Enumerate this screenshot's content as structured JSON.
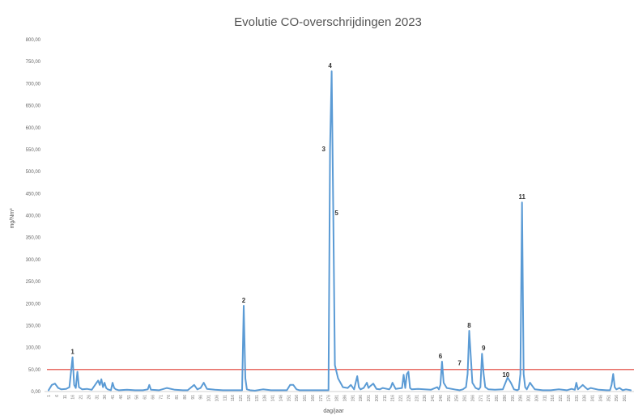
{
  "chart_data": {
    "type": "line",
    "title": "Evolutie CO-overschrijdingen 2023",
    "xlabel": "dag/jaar",
    "ylabel": "mg/Nm³",
    "ylim": [
      0,
      800
    ],
    "xlim": [
      1,
      365
    ],
    "yticks": [
      "0,00",
      "50,00",
      "100,00",
      "150,00",
      "200,00",
      "250,00",
      "300,00",
      "350,00",
      "400,00",
      "450,00",
      "500,00",
      "550,00",
      "600,00",
      "650,00",
      "700,00",
      "750,00",
      "800,00"
    ],
    "xticks": [
      1,
      6,
      11,
      16,
      21,
      26,
      31,
      36,
      41,
      46,
      51,
      56,
      61,
      66,
      71,
      76,
      81,
      86,
      91,
      96,
      101,
      106,
      111,
      116,
      121,
      126,
      131,
      136,
      141,
      146,
      151,
      156,
      161,
      166,
      171,
      176,
      181,
      186,
      191,
      196,
      201,
      206,
      211,
      216,
      221,
      226,
      231,
      236,
      241,
      246,
      251,
      256,
      261,
      266,
      271,
      276,
      281,
      286,
      291,
      296,
      301,
      306,
      311,
      316,
      321,
      326,
      331,
      336,
      341,
      346,
      351,
      356,
      361
    ],
    "colors": {
      "series": "#5b9bd5",
      "threshold": "#e03c31"
    },
    "threshold": {
      "value": 50
    },
    "series": [
      {
        "x": [
          1,
          3,
          5,
          7,
          9,
          12,
          14,
          16,
          17,
          18,
          19,
          20,
          22,
          25,
          28,
          31,
          32,
          33,
          34,
          35,
          36,
          37,
          38,
          40,
          41,
          42,
          43,
          45,
          50,
          55,
          60,
          63,
          64,
          65,
          70,
          75,
          80,
          85,
          88,
          92,
          94,
          96,
          98,
          100,
          105,
          110,
          113,
          115,
          117,
          120,
          122,
          123,
          124,
          125,
          127,
          130,
          135,
          140,
          145,
          150,
          152,
          154,
          156,
          158,
          160,
          165,
          170,
          173,
          175,
          176,
          177,
          178,
          179,
          180,
          182,
          185,
          188,
          190,
          192,
          194,
          195,
          196,
          198,
          200,
          201,
          202,
          204,
          206,
          208,
          210,
          214,
          215,
          216,
          218,
          222,
          223,
          224,
          225,
          226,
          227,
          228,
          232,
          236,
          240,
          244,
          245,
          246,
          247,
          248,
          250,
          256,
          258,
          260,
          262,
          263,
          264,
          266,
          268,
          270,
          271,
          272,
          273,
          274,
          276,
          280,
          285,
          288,
          290,
          292,
          294,
          295,
          296,
          297,
          298,
          299,
          300,
          302,
          303,
          305,
          310,
          315,
          320,
          325,
          328,
          330,
          331,
          332,
          335,
          337,
          338,
          340,
          345,
          350,
          352,
          353,
          354,
          355,
          356,
          358,
          360,
          362,
          365
        ],
        "y": [
          3,
          15,
          18,
          8,
          5,
          6,
          10,
          78,
          15,
          8,
          45,
          10,
          5,
          6,
          4,
          20,
          25,
          15,
          28,
          10,
          20,
          8,
          5,
          3,
          20,
          8,
          5,
          3,
          4,
          3,
          3,
          5,
          15,
          4,
          3,
          8,
          4,
          3,
          3,
          15,
          5,
          8,
          20,
          6,
          4,
          3,
          3,
          3,
          3,
          3,
          3,
          195,
          30,
          5,
          3,
          2,
          5,
          3,
          3,
          3,
          15,
          15,
          5,
          3,
          3,
          3,
          3,
          3,
          3,
          3,
          550,
          728,
          405,
          60,
          30,
          10,
          8,
          15,
          5,
          35,
          10,
          5,
          8,
          20,
          8,
          12,
          18,
          6,
          5,
          8,
          5,
          10,
          20,
          6,
          8,
          38,
          8,
          40,
          45,
          8,
          5,
          6,
          5,
          4,
          10,
          5,
          15,
          68,
          20,
          8,
          4,
          3,
          5,
          10,
          40,
          138,
          20,
          8,
          5,
          10,
          86,
          40,
          10,
          5,
          4,
          5,
          32,
          20,
          5,
          3,
          5,
          40,
          430,
          40,
          10,
          5,
          20,
          15,
          5,
          3,
          3,
          5,
          3,
          6,
          4,
          20,
          5,
          15,
          8,
          5,
          8,
          4,
          3,
          3,
          15,
          40,
          10,
          5,
          8,
          3,
          5,
          3
        ]
      }
    ],
    "annotations": [
      {
        "text": "1",
        "x": 16,
        "y": 78
      },
      {
        "text": "2",
        "x": 123,
        "y": 195
      },
      {
        "text": "3",
        "x": 176,
        "y": 550
      },
      {
        "text": "4",
        "x": 177,
        "y": 728
      },
      {
        "text": "5",
        "x": 178,
        "y": 405
      },
      {
        "text": "6",
        "x": 246,
        "y": 68
      },
      {
        "text": "7",
        "x": 262,
        "y": 60
      },
      {
        "text": "8",
        "x": 264,
        "y": 138
      },
      {
        "text": "9",
        "x": 273,
        "y": 86
      },
      {
        "text": "10",
        "x": 292,
        "y": 55
      },
      {
        "text": "11",
        "x": 297,
        "y": 430
      }
    ],
    "grid": false,
    "legend": "none"
  }
}
